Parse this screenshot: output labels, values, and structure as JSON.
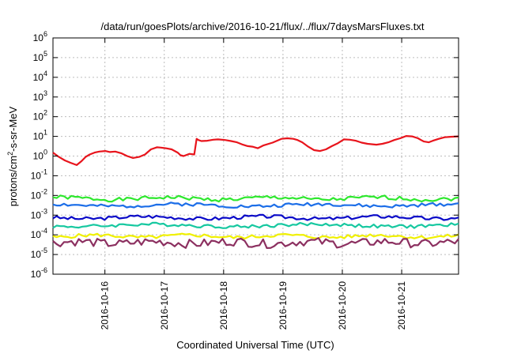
{
  "chart_data": {
    "type": "line",
    "title": "/data/run/goesPlots/archive/2016-10-21/flux/../flux/7daysMarsFluxes.txt",
    "xlabel": "Coordinated Universal Time (UTC)",
    "ylabel": {
      "prefix": "protons/cm",
      "sup": "2",
      "suffix": "-s-sr-MeV"
    },
    "y_scale": "log",
    "ylim": [
      1e-06,
      1000000.0
    ],
    "y_ticks": [
      {
        "exp": "-6"
      },
      {
        "exp": "-5"
      },
      {
        "exp": "-4"
      },
      {
        "exp": "-3"
      },
      {
        "exp": "-2"
      },
      {
        "exp": "-1"
      },
      {
        "exp": "0"
      },
      {
        "exp": "1"
      },
      {
        "exp": "2"
      },
      {
        "exp": "3"
      },
      {
        "exp": "4"
      },
      {
        "exp": "5"
      },
      {
        "exp": "6"
      }
    ],
    "y_tick_base": "10",
    "xlim": [
      "2016-10-15 03:00",
      "2016-10-21 23:00"
    ],
    "x_ticks": [
      "2016-10-16",
      "2016-10-17",
      "2016-10-18",
      "2016-10-19",
      "2016-10-20",
      "2016-10-21"
    ],
    "grid": true,
    "legend": "none",
    "series": [
      {
        "color": "#e8141c",
        "width": 2.2,
        "x_days": [
          0.0,
          0.1,
          0.2,
          0.3,
          0.4,
          0.48,
          0.55,
          0.62,
          0.7,
          0.78,
          0.88,
          0.96,
          1.05,
          1.15,
          1.25,
          1.35,
          1.45,
          1.55,
          1.65,
          1.75,
          1.82,
          1.9,
          2.0,
          2.1,
          2.15,
          2.2,
          2.3,
          2.38,
          2.42,
          2.45,
          2.5,
          2.6,
          2.7,
          2.78,
          2.9,
          3.0,
          3.1,
          3.2,
          3.28,
          3.36,
          3.45,
          3.55,
          3.7,
          3.85,
          3.95,
          4.05,
          4.12,
          4.2,
          4.3,
          4.4,
          4.5,
          4.6,
          4.7,
          4.8,
          4.9,
          5.0,
          5.1,
          5.2,
          5.3,
          5.45,
          5.55,
          5.65,
          5.75,
          5.85,
          5.95,
          6.05,
          6.15,
          6.2,
          6.25,
          6.33,
          6.4,
          6.5,
          6.6,
          6.7,
          6.83
        ],
        "values": [
          1.5,
          0.9,
          0.6,
          0.45,
          0.35,
          0.55,
          0.9,
          1.2,
          1.5,
          1.7,
          1.8,
          1.6,
          1.7,
          1.4,
          1.0,
          0.8,
          0.9,
          1.2,
          2.2,
          2.8,
          2.7,
          2.5,
          2.2,
          1.5,
          1.1,
          1.0,
          1.3,
          1.2,
          7.5,
          6.5,
          5.8,
          6.0,
          6.8,
          7.0,
          6.5,
          5.8,
          5.0,
          3.8,
          3.2,
          3.0,
          2.5,
          3.5,
          4.8,
          7.5,
          8.0,
          7.5,
          6.5,
          5.0,
          3.0,
          2.0,
          1.8,
          2.2,
          3.2,
          4.5,
          7.0,
          6.8,
          6.0,
          4.8,
          4.2,
          3.8,
          4.2,
          5.0,
          6.5,
          8.0,
          10.5,
          10.0,
          8.0,
          6.5,
          5.5,
          5.0,
          6.0,
          7.5,
          9.0,
          9.5,
          10.0
        ]
      },
      {
        "color": "#2ee82e",
        "width": 2.2,
        "center": 0.007,
        "amp": 0.1,
        "freq": 1.7,
        "seed": 1
      },
      {
        "color": "#1c6ee8",
        "width": 2.2,
        "center": 0.0032,
        "amp": 0.09,
        "freq": 1.3,
        "seed": 2
      },
      {
        "color": "#0a0ac8",
        "width": 2.2,
        "center": 0.00075,
        "amp": 0.09,
        "freq": 1.5,
        "seed": 3
      },
      {
        "color": "#16c8a0",
        "width": 2.2,
        "center": 0.0003,
        "amp": 0.09,
        "freq": 1.1,
        "seed": 4
      },
      {
        "color": "#f0f000",
        "width": 2.2,
        "center": 8.5e-05,
        "amp": 0.09,
        "freq": 1.9,
        "seed": 5
      },
      {
        "color": "#8c3060",
        "width": 2.2,
        "center": 4e-05,
        "amp": 0.22,
        "freq": 2.3,
        "seed": 6
      }
    ]
  }
}
